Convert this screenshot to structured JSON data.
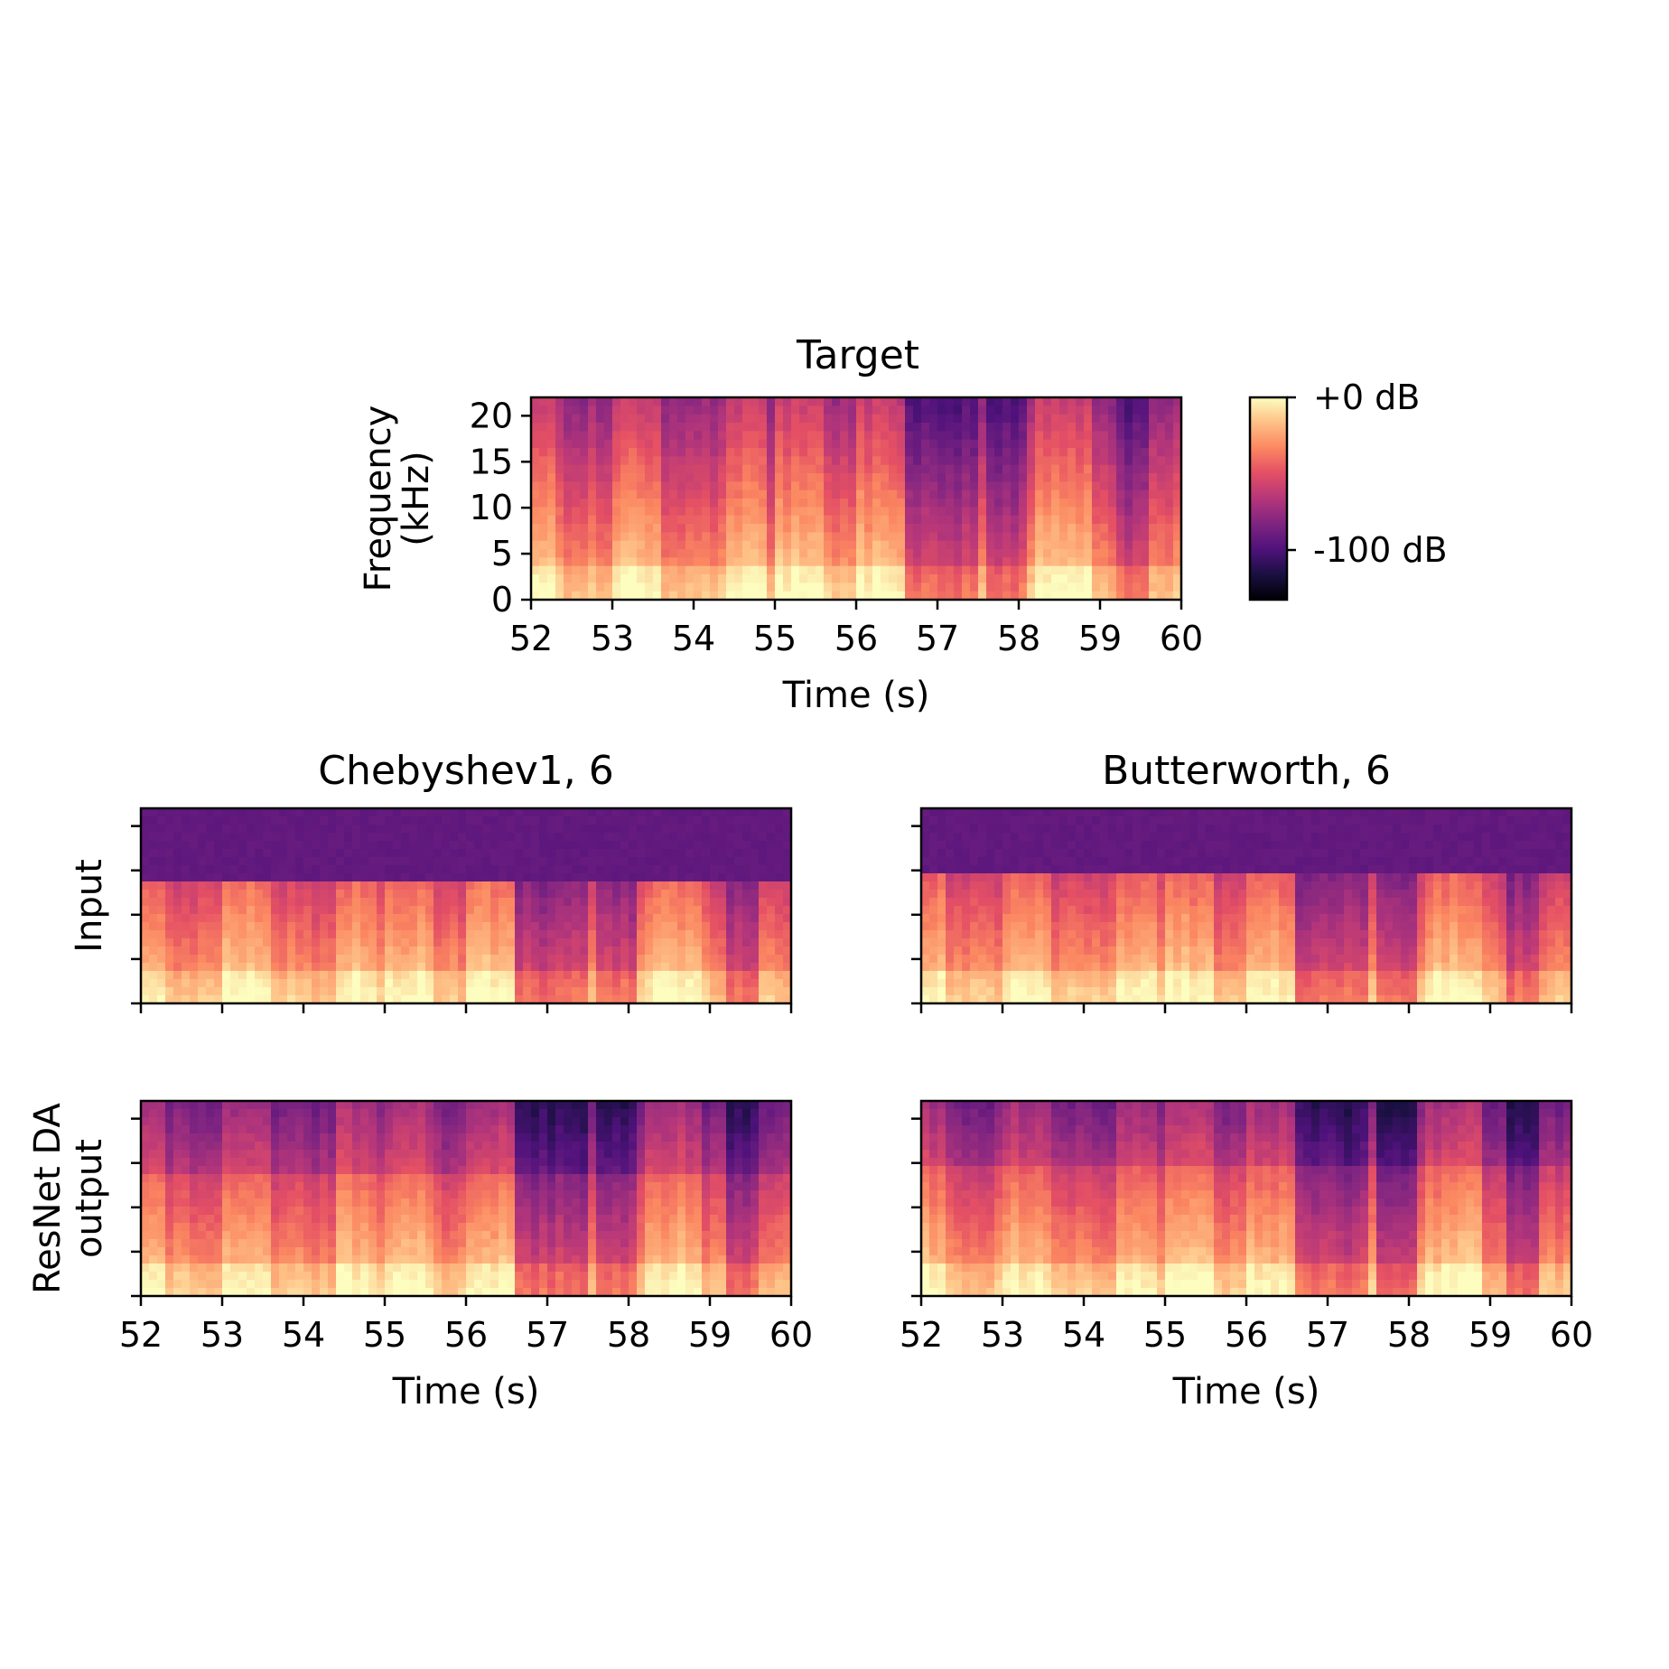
{
  "chart_data": {
    "type": "heatmap",
    "colormap": "magma",
    "colorbar": {
      "labels": [
        "+0 dB",
        "-100 dB"
      ],
      "values": [
        0,
        -100
      ],
      "range": [
        -120,
        0
      ]
    },
    "panels": [
      {
        "id": "target",
        "title": "Target",
        "xlabel": "Time (s)",
        "ylabel": [
          "Frequency",
          "(kHz)"
        ],
        "xlim": [
          52,
          60
        ],
        "ylim": [
          0,
          22
        ],
        "xticks": [
          52,
          53,
          54,
          55,
          56,
          57,
          58,
          59,
          60
        ],
        "yticks": [
          0,
          5,
          10,
          15,
          20
        ],
        "show_xticklabels": true,
        "show_yticklabels": true,
        "cutoff_khz": null,
        "style": "target"
      },
      {
        "id": "cheb-input",
        "title": "Chebyshev1, 6",
        "xlabel": "",
        "ylabel": [
          "Input"
        ],
        "xlim": [
          52,
          60
        ],
        "ylim": [
          0,
          22
        ],
        "xticks": [
          52,
          53,
          54,
          55,
          56,
          57,
          58,
          59,
          60
        ],
        "yticks": [
          0,
          5,
          10,
          15,
          20
        ],
        "show_xticklabels": false,
        "show_yticklabels": false,
        "cutoff_khz": 13.5,
        "style": "input"
      },
      {
        "id": "butter-input",
        "title": "Butterworth, 6",
        "xlabel": "",
        "ylabel": [],
        "xlim": [
          52,
          60
        ],
        "ylim": [
          0,
          22
        ],
        "xticks": [
          52,
          53,
          54,
          55,
          56,
          57,
          58,
          59,
          60
        ],
        "yticks": [
          0,
          5,
          10,
          15,
          20
        ],
        "show_xticklabels": false,
        "show_yticklabels": false,
        "cutoff_khz": 14.5,
        "style": "input"
      },
      {
        "id": "cheb-output",
        "title": "",
        "xlabel": "Time (s)",
        "ylabel": [
          "ResNet DA",
          "output"
        ],
        "xlim": [
          52,
          60
        ],
        "ylim": [
          0,
          22
        ],
        "xticks": [
          52,
          53,
          54,
          55,
          56,
          57,
          58,
          59,
          60
        ],
        "yticks": [
          0,
          5,
          10,
          15,
          20
        ],
        "show_xticklabels": true,
        "show_yticklabels": false,
        "cutoff_khz": 13.5,
        "style": "output"
      },
      {
        "id": "butter-output",
        "title": "",
        "xlabel": "Time (s)",
        "ylabel": [],
        "xlim": [
          52,
          60
        ],
        "ylim": [
          0,
          22
        ],
        "xticks": [
          52,
          53,
          54,
          55,
          56,
          57,
          58,
          59,
          60
        ],
        "yticks": [
          0,
          5,
          10,
          15,
          20
        ],
        "show_xticklabels": true,
        "show_yticklabels": false,
        "cutoff_khz": 14.5,
        "style": "output"
      }
    ],
    "loud_segments_s": [
      [
        52.0,
        52.3
      ],
      [
        53.0,
        53.6
      ],
      [
        54.4,
        54.9
      ],
      [
        55.0,
        55.6
      ],
      [
        56.0,
        56.6
      ],
      [
        58.2,
        58.9
      ]
    ],
    "quiet_segments_s": [
      [
        56.6,
        57.0
      ],
      [
        57.0,
        57.5
      ],
      [
        57.6,
        58.1
      ],
      [
        59.2,
        59.6
      ]
    ]
  }
}
